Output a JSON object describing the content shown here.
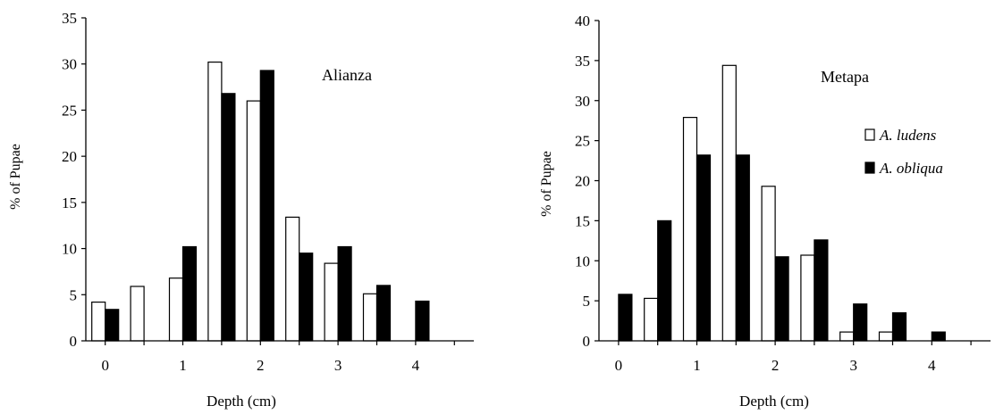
{
  "chart_data": [
    {
      "type": "bar",
      "title": "Alianza",
      "xlabel": "Depth (cm)",
      "ylabel": "% of Pupae",
      "ylim": [
        0,
        35
      ],
      "yticks": [
        "0",
        "5",
        "10",
        "15",
        "20",
        "25",
        "30",
        "35"
      ],
      "xlim": [
        -0.25,
        4.75
      ],
      "xticks": [
        "0",
        "1",
        "2",
        "3",
        "4"
      ],
      "categories": [
        0,
        0.5,
        1,
        1.5,
        2,
        2.5,
        3,
        3.5,
        4
      ],
      "series": [
        {
          "fill": "#ffffff",
          "values": [
            4.2,
            5.9,
            6.8,
            30.2,
            26.0,
            13.4,
            8.4,
            5.1,
            0
          ]
        },
        {
          "fill": "#000000",
          "values": [
            3.4,
            0,
            10.2,
            26.8,
            29.3,
            9.5,
            10.2,
            6.0,
            4.3
          ]
        }
      ],
      "grid": false,
      "legend": null
    },
    {
      "type": "bar",
      "title": "Metapa",
      "xlabel": "Depth (cm)",
      "ylabel": "% of Pupae",
      "ylim": [
        0,
        40
      ],
      "yticks": [
        "0",
        "5",
        "10",
        "15",
        "20",
        "25",
        "30",
        "35",
        "40"
      ],
      "xlim": [
        -0.25,
        4.75
      ],
      "xticks": [
        "0",
        "1",
        "2",
        "3",
        "4"
      ],
      "categories": [
        0,
        0.5,
        1,
        1.5,
        2,
        2.5,
        3,
        3.5,
        4
      ],
      "series": [
        {
          "name": "A. ludens",
          "fill": "#ffffff",
          "values": [
            0,
            5.3,
            27.9,
            34.4,
            19.3,
            10.7,
            1.1,
            1.1,
            0
          ]
        },
        {
          "name": "A. obliqua",
          "fill": "#000000",
          "values": [
            5.8,
            15.0,
            23.2,
            23.2,
            10.5,
            12.6,
            4.6,
            3.5,
            1.1
          ]
        }
      ],
      "grid": false,
      "legend": "right"
    }
  ]
}
